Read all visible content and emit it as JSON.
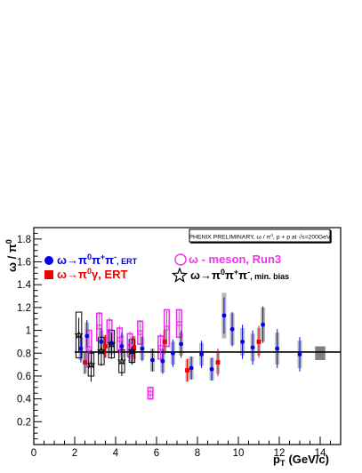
{
  "chart_data": {
    "type": "scatter",
    "header_box": "PHENIX PRELIMINARY, ω / π⁰,   p + p at √s=200GeV",
    "ylabel_main": "ω / π",
    "ylabel_sup": "0",
    "xlabel_main": "p",
    "xlabel_sub": "T",
    "xlabel_unit": "(GeV/c)",
    "xlim": [
      0,
      15
    ],
    "ylim": [
      0,
      1.9
    ],
    "x_ticks": [
      0,
      2,
      4,
      6,
      8,
      10,
      12,
      14
    ],
    "y_ticks": [
      0.2,
      0.4,
      0.6,
      0.8,
      1.0,
      1.2,
      1.4,
      1.6,
      1.8
    ],
    "y_tick_labels": [
      "0.2",
      "0.4",
      "0.6",
      "0.8",
      "1",
      "1.2",
      "1.4",
      "1.6",
      "1.8"
    ],
    "fit_value": 0.81,
    "legend_placement": "top",
    "colors": {
      "ert_pipi": "#0000ee",
      "ert_gamma": "#ee0000",
      "run3": "#ee33ee",
      "minbias": "#000000",
      "syst_band": "#a0a0a0",
      "fit": "#000000"
    },
    "legend": [
      {
        "key": "ert_pipi",
        "symbol": "ω→π",
        "sup": "0",
        "tail": "π",
        "sup2": "+",
        "tail2": "π",
        "sup3": "-",
        "suffix": ", ERT"
      },
      {
        "key": "run3",
        "symbol": "ω - meson, Run3"
      },
      {
        "key": "ert_gamma",
        "symbol": "ω→π",
        "sup": "0",
        "tail": "γ, ERT"
      },
      {
        "key": "minbias",
        "symbol": "ω→π",
        "sup": "0",
        "tail": "π",
        "sup2": "+",
        "tail2": "π",
        "sup3": "-",
        "suffix": ", min. bias"
      }
    ],
    "series": [
      {
        "name": "ω→π⁰π⁺π⁻, ERT",
        "key": "ert_pipi",
        "marker": "circle-filled",
        "points": [
          {
            "x": 2.3,
            "y": 0.84,
            "stat": 0.12,
            "sys": 0.1
          },
          {
            "x": 2.6,
            "y": 0.95,
            "stat": 0.14,
            "sys": 0.12
          },
          {
            "x": 3.3,
            "y": 0.9,
            "stat": 0.12,
            "sys": 0.1
          },
          {
            "x": 3.8,
            "y": 0.89,
            "stat": 0.11,
            "sys": 0.1
          },
          {
            "x": 4.3,
            "y": 0.86,
            "stat": 0.12,
            "sys": 0.1
          },
          {
            "x": 4.8,
            "y": 0.81,
            "stat": 0.1,
            "sys": 0.1
          },
          {
            "x": 5.3,
            "y": 0.84,
            "stat": 0.11,
            "sys": 0.1
          },
          {
            "x": 5.8,
            "y": 0.74,
            "stat": 0.1,
            "sys": 0.1
          },
          {
            "x": 6.3,
            "y": 0.73,
            "stat": 0.11,
            "sys": 0.1
          },
          {
            "x": 6.8,
            "y": 0.8,
            "stat": 0.12,
            "sys": 0.1
          },
          {
            "x": 7.2,
            "y": 0.88,
            "stat": 0.12,
            "sys": 0.1
          },
          {
            "x": 7.7,
            "y": 0.67,
            "stat": 0.1,
            "sys": 0.1
          },
          {
            "x": 8.2,
            "y": 0.79,
            "stat": 0.12,
            "sys": 0.1
          },
          {
            "x": 8.7,
            "y": 0.66,
            "stat": 0.1,
            "sys": 0.1
          },
          {
            "x": 9.3,
            "y": 1.13,
            "stat": 0.16,
            "sys": 0.2
          },
          {
            "x": 9.7,
            "y": 1.01,
            "stat": 0.15,
            "sys": 0.14
          },
          {
            "x": 10.2,
            "y": 0.9,
            "stat": 0.15,
            "sys": 0.12
          },
          {
            "x": 10.7,
            "y": 0.85,
            "stat": 0.15,
            "sys": 0.12
          },
          {
            "x": 11.2,
            "y": 1.05,
            "stat": 0.16,
            "sys": 0.15
          },
          {
            "x": 11.9,
            "y": 0.84,
            "stat": 0.17,
            "sys": 0.14
          },
          {
            "x": 13.0,
            "y": 0.79,
            "stat": 0.15,
            "sys": 0.12
          }
        ]
      },
      {
        "name": "ω→π⁰γ, ERT",
        "key": "ert_gamma",
        "marker": "square-filled",
        "points": [
          {
            "x": 2.5,
            "y": 0.72,
            "stat": 0.1,
            "sys": 0.1
          },
          {
            "x": 3.5,
            "y": 0.86,
            "stat": 0.1,
            "sys": 0.1
          },
          {
            "x": 4.9,
            "y": 0.85,
            "stat": 0.1,
            "sys": 0.1
          },
          {
            "x": 6.4,
            "y": 0.9,
            "stat": 0.11,
            "sys": 0.1
          },
          {
            "x": 7.5,
            "y": 0.65,
            "stat": 0.1,
            "sys": 0.1
          },
          {
            "x": 9.0,
            "y": 0.72,
            "stat": 0.12,
            "sys": 0.1
          },
          {
            "x": 11.0,
            "y": 0.9,
            "stat": 0.14,
            "sys": 0.12
          }
        ]
      },
      {
        "name": "ω - meson, Run3",
        "key": "run3",
        "marker": "circle-open",
        "points": [
          {
            "x": 2.7,
            "y": 0.84,
            "stat": 0.15,
            "sys": 0.16
          },
          {
            "x": 3.2,
            "y": 1.03,
            "stat": 0.13,
            "sys": 0.12
          },
          {
            "x": 3.7,
            "y": 0.99,
            "stat": 0.12,
            "sys": 0.1
          },
          {
            "x": 4.2,
            "y": 0.92,
            "stat": 0.12,
            "sys": 0.1
          },
          {
            "x": 4.7,
            "y": 0.87,
            "stat": 0.12,
            "sys": 0.1
          },
          {
            "x": 5.2,
            "y": 0.98,
            "stat": 0.11,
            "sys": 0.1
          },
          {
            "x": 5.7,
            "y": 0.45,
            "stat": 0.06,
            "sys": 0.05
          },
          {
            "x": 6.2,
            "y": 0.85,
            "stat": 0.12,
            "sys": 0.1
          },
          {
            "x": 6.5,
            "y": 1.02,
            "stat": 0.15,
            "sys": 0.16
          },
          {
            "x": 7.1,
            "y": 1.06,
            "stat": 0.12,
            "sys": 0.12
          }
        ]
      },
      {
        "name": "ω→π⁰π⁺π⁻, min. bias",
        "key": "minbias",
        "marker": "star-open",
        "points": [
          {
            "x": 2.2,
            "y": 0.96,
            "stat": 0.15,
            "sys": 0.2
          },
          {
            "x": 2.8,
            "y": 0.7,
            "stat": 0.15,
            "sys": 0.1
          },
          {
            "x": 3.3,
            "y": 0.82,
            "stat": 0.13,
            "sys": 0.12
          },
          {
            "x": 3.8,
            "y": 0.88,
            "stat": 0.13,
            "sys": 0.12
          },
          {
            "x": 4.3,
            "y": 0.73,
            "stat": 0.13,
            "sys": 0.1
          },
          {
            "x": 4.8,
            "y": 0.82,
            "stat": 0.12,
            "sys": 0.1
          }
        ]
      }
    ]
  }
}
